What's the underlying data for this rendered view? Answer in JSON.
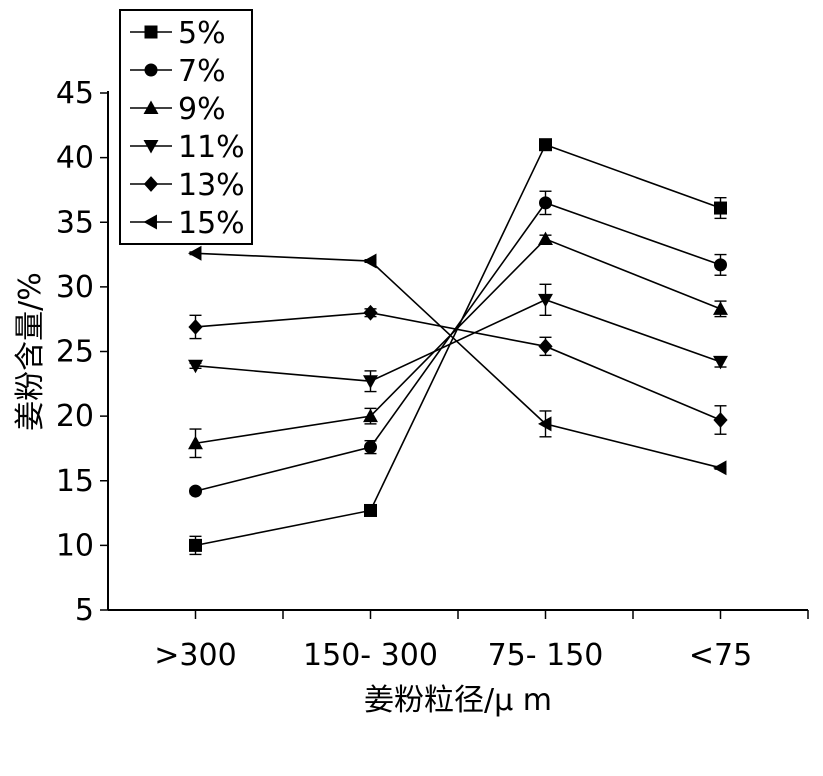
{
  "chart_data": {
    "type": "line",
    "xlabel": "姜粉粒径/μ m",
    "ylabel": "姜粉含量/%",
    "categories": [
      ">300",
      "150- 300",
      "75- 150",
      "<75"
    ],
    "ylim": [
      5,
      45
    ],
    "yticks": [
      5,
      10,
      15,
      20,
      25,
      30,
      35,
      40,
      45
    ],
    "grid": false,
    "legend_position": "top-left",
    "series": [
      {
        "name": "5%",
        "marker": "square",
        "values": [
          10.0,
          12.7,
          41.0,
          36.1
        ],
        "errors": [
          0.7,
          0.2,
          0.2,
          0.8
        ]
      },
      {
        "name": "7%",
        "marker": "circle",
        "values": [
          14.2,
          17.6,
          36.5,
          31.7
        ],
        "errors": [
          0.2,
          0.5,
          0.9,
          0.8
        ]
      },
      {
        "name": "9%",
        "marker": "triangle-up",
        "values": [
          17.9,
          20.0,
          33.7,
          28.3
        ],
        "errors": [
          1.1,
          0.6,
          0.3,
          0.6
        ]
      },
      {
        "name": "11%",
        "marker": "triangle-down",
        "values": [
          23.9,
          22.7,
          29.0,
          24.2
        ],
        "errors": [
          0.2,
          0.8,
          1.2,
          0.4
        ]
      },
      {
        "name": "13%",
        "marker": "diamond",
        "values": [
          26.9,
          28.0,
          25.4,
          19.7
        ],
        "errors": [
          0.9,
          0.3,
          0.7,
          1.1
        ]
      },
      {
        "name": "15%",
        "marker": "triangle-left",
        "values": [
          32.6,
          32.0,
          19.4,
          16.0
        ],
        "errors": [
          0.1,
          0.1,
          1.0,
          0.1
        ]
      }
    ]
  }
}
